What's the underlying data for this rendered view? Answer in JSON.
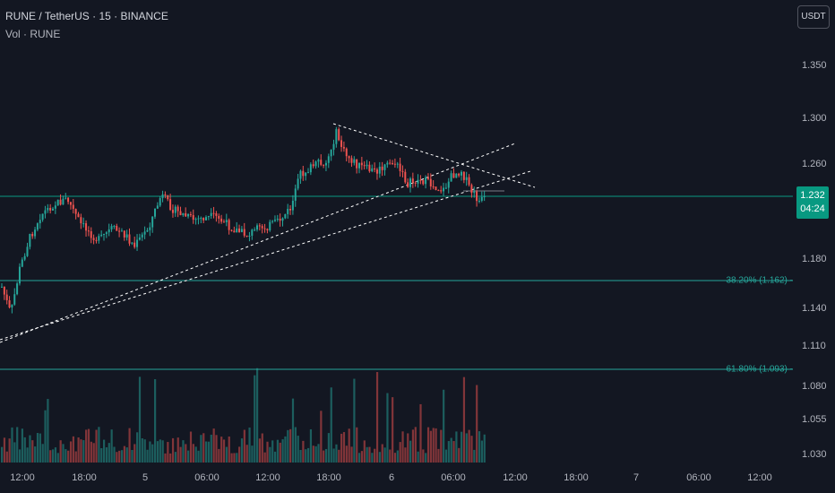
{
  "header": {
    "symbol_line": "RUNE / TetherUS · 15 · BINANCE",
    "volume_line": "Vol · RUNE"
  },
  "currency_button": {
    "label": "USDT"
  },
  "price_scale": {
    "ticks": [
      "1.350",
      "1.300",
      "1.260",
      "1.180",
      "1.140",
      "1.110",
      "1.080",
      "1.055",
      "1.030"
    ]
  },
  "time_scale": {
    "ticks": [
      "12:00",
      "18:00",
      "5",
      "06:00",
      "12:00",
      "18:00",
      "6",
      "06:00",
      "12:00",
      "18:00",
      "7",
      "06:00",
      "12:00"
    ]
  },
  "last_price": {
    "price": "1.232",
    "countdown": "04:24"
  },
  "fib_levels": [
    {
      "label": "38.20% (1.162)",
      "value": 1.162
    },
    {
      "label": "61.80% (1.093)",
      "value": 1.093
    }
  ],
  "colors": {
    "background": "#131722",
    "up": "#26a69a",
    "down": "#ef5350",
    "fib_line": "#26a69a",
    "trendline": "#ffffff"
  },
  "icons": {
    "currency": "usdt-button"
  }
}
